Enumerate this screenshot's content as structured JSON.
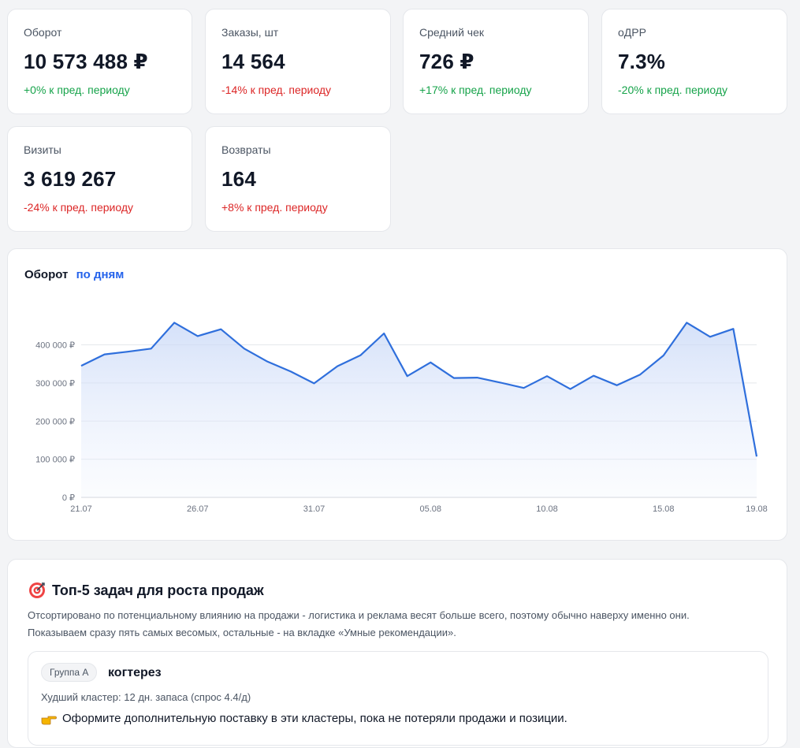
{
  "kpis": [
    {
      "label": "Оборот",
      "value": "10 573 488 ₽",
      "delta": "+0% к пред. периоду",
      "trend": "pos"
    },
    {
      "label": "Заказы, шт",
      "value": "14 564",
      "delta": "-14% к пред. периоду",
      "trend": "neg"
    },
    {
      "label": "Средний чек",
      "value": "726 ₽",
      "delta": "+17% к пред. периоду",
      "trend": "pos"
    },
    {
      "label": "оДРР",
      "value": "7.3%",
      "delta": "-20% к пред. периоду",
      "trend": "pos"
    },
    {
      "label": "Визиты",
      "value": "3 619 267",
      "delta": "-24% к пред. периоду",
      "trend": "neg"
    },
    {
      "label": "Возвраты",
      "value": "164",
      "delta": "+8% к пред. периоду",
      "trend": "neg"
    }
  ],
  "chart": {
    "title": "Оборот",
    "mode_link": "по дням"
  },
  "chart_data": {
    "type": "area",
    "title": "Оборот",
    "x": [
      "21.07",
      "22.07",
      "23.07",
      "24.07",
      "25.07",
      "26.07",
      "27.07",
      "28.07",
      "29.07",
      "30.07",
      "31.07",
      "01.08",
      "02.08",
      "03.08",
      "04.08",
      "05.08",
      "06.08",
      "07.08",
      "08.08",
      "09.08",
      "10.08",
      "11.08",
      "12.08",
      "13.08",
      "14.08",
      "15.08",
      "16.08",
      "17.08",
      "18.08",
      "19.08"
    ],
    "x_ticks": [
      "21.07",
      "26.07",
      "31.07",
      "05.08",
      "10.08",
      "15.08",
      "19.08"
    ],
    "y_ticks": [
      0,
      100000,
      200000,
      300000,
      400000
    ],
    "y_tick_labels": [
      "0 ₽",
      "100 000 ₽",
      "200 000 ₽",
      "300 000 ₽",
      "400 000 ₽"
    ],
    "ylim": [
      0,
      400000
    ],
    "series": [
      {
        "name": "Оборот",
        "values": [
          345000,
          375000,
          382000,
          390000,
          458000,
          423000,
          441000,
          390000,
          356000,
          330000,
          299000,
          344000,
          373000,
          430000,
          318000,
          354000,
          313000,
          314000,
          301000,
          287000,
          318000,
          284000,
          319000,
          294000,
          322000,
          372000,
          458000,
          421000,
          442000,
          107000
        ]
      }
    ],
    "grid": true,
    "colors": {
      "line": "#2f6fdc",
      "fill": "#dbe6fb"
    }
  },
  "tasks": {
    "icon": "target-icon",
    "title": "Топ-5 задач для роста продаж",
    "desc_line1": "Отсортировано по потенциальному влиянию на продажи - логистика и реклама весят больше всего, поэтому обычно наверху именно они.",
    "desc_line2": "Показываем сразу пять самых весомых, остальные - на вкладке «Умные рекомендации».",
    "items": [
      {
        "group": "Группа A",
        "name": "когтерез",
        "detail": "Худший кластер: 12 дн. запаса (спрос 4.4/д)",
        "action_icon": "pointing-hand-icon",
        "action": "Оформите дополнительную поставку в эти кластеры, пока не потеряли продажи и позиции."
      }
    ]
  }
}
